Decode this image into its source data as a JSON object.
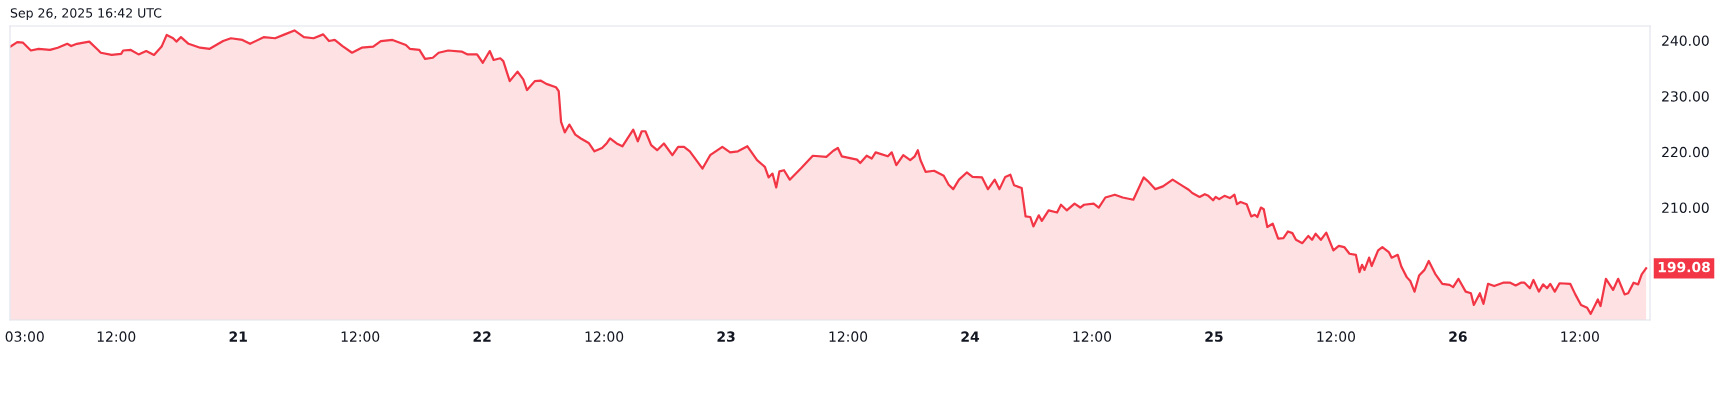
{
  "chart_data": {
    "type": "area",
    "subtitle": "Sep 26, 2025 16:42 UTC",
    "x": [
      "2025-09-20T01:35",
      "2025-09-20T02:16",
      "2025-09-20T02:50",
      "2025-09-20T03:36",
      "2025-09-20T04:22",
      "2025-09-20T05:29",
      "2025-09-20T06:15",
      "2025-09-20T07:11",
      "2025-09-20T07:34",
      "2025-09-20T08:08",
      "2025-09-20T09:21",
      "2025-09-20T10:13",
      "2025-09-20T10:29",
      "2025-09-20T11:33",
      "2025-09-20T12:29",
      "2025-09-20T12:41",
      "2025-09-20T13:26",
      "2025-09-20T14:12",
      "2025-09-20T14:57",
      "2025-09-20T15:43",
      "2025-09-20T16:28",
      "2025-09-20T16:58",
      "2025-09-20T17:36",
      "2025-09-20T17:55",
      "2025-09-20T18:22",
      "2025-09-20T19:07",
      "2025-09-20T20:15",
      "2025-09-20T21:12",
      "2025-09-20T22:31",
      "2025-09-20T23:17",
      "2025-09-21T00:25",
      "2025-09-21T01:10",
      "2025-09-21T02:30",
      "2025-09-21T03:38",
      "2025-09-21T04:35",
      "2025-09-21T05:32",
      "2025-09-21T06:28",
      "2025-09-21T07:25",
      "2025-09-21T08:22",
      "2025-09-21T08:56",
      "2025-09-21T09:30",
      "2025-09-21T10:16",
      "2025-09-21T11:12",
      "2025-09-21T12:09",
      "2025-09-21T13:17",
      "2025-09-21T14:02",
      "2025-09-21T15:11",
      "2025-09-21T16:30",
      "2025-09-21T16:53",
      "2025-09-21T17:50",
      "2025-09-21T18:23",
      "2025-09-21T19:09",
      "2025-09-21T19:43",
      "2025-09-21T20:40",
      "2025-09-21T21:59",
      "2025-09-21T22:34",
      "2025-09-21T23:30",
      "2025-09-22T00:04",
      "2025-09-22T00:45",
      "2025-09-22T01:08",
      "2025-09-22T01:47",
      "2025-09-22T02:05",
      "2025-09-22T02:43",
      "2025-09-22T03:29",
      "2025-09-22T04:03",
      "2025-09-22T04:25",
      "2025-09-22T05:11",
      "2025-09-22T05:45",
      "2025-09-22T06:19",
      "2025-09-22T07:16",
      "2025-09-22T07:32",
      "2025-09-22T07:46",
      "2025-09-22T08:08",
      "2025-09-22T08:35",
      "2025-09-22T09:10",
      "2025-09-22T09:43",
      "2025-09-22T10:29",
      "2025-09-22T11:03",
      "2025-09-22T11:48",
      "2025-09-22T12:17",
      "2025-09-22T12:35",
      "2025-09-22T13:14",
      "2025-09-22T13:48",
      "2025-09-22T14:52",
      "2025-09-22T15:19",
      "2025-09-22T15:42",
      "2025-09-22T16:04",
      "2025-09-22T16:38",
      "2025-09-22T17:13",
      "2025-09-22T17:53",
      "2025-09-22T18:43",
      "2025-09-22T19:17",
      "2025-09-22T19:52",
      "2025-09-22T20:26",
      "2025-09-22T21:41",
      "2025-09-22T22:26",
      "2025-09-22T23:38",
      "2025-09-23T00:24",
      "2025-09-23T01:10",
      "2025-09-23T02:06",
      "2025-09-23T03:03",
      "2025-09-23T03:49",
      "2025-09-23T04:11",
      "2025-09-23T04:34",
      "2025-09-23T04:56",
      "2025-09-23T05:15",
      "2025-09-23T05:42",
      "2025-09-23T06:16",
      "2025-09-23T07:24",
      "2025-09-23T08:32",
      "2025-09-23T09:52",
      "2025-09-23T10:33",
      "2025-09-23T11:00",
      "2025-09-23T11:23",
      "2025-09-23T12:53",
      "2025-09-23T13:12",
      "2025-09-23T13:50",
      "2025-09-23T14:20",
      "2025-09-23T14:43",
      "2025-09-23T15:55",
      "2025-09-23T16:18",
      "2025-09-23T16:45",
      "2025-09-23T17:26",
      "2025-09-23T18:07",
      "2025-09-23T18:34",
      "2025-09-23T18:52",
      "2025-09-23T19:08",
      "2025-09-23T19:38",
      "2025-09-23T20:28",
      "2025-09-23T21:25",
      "2025-09-23T21:54",
      "2025-09-23T22:21",
      "2025-09-23T22:55",
      "2025-09-23T23:41",
      "2025-09-24T00:15",
      "2025-09-24T01:11",
      "2025-09-24T01:46",
      "2025-09-24T02:26",
      "2025-09-24T02:54",
      "2025-09-24T03:28",
      "2025-09-24T03:58",
      "2025-09-24T04:20",
      "2025-09-24T05:05",
      "2025-09-24T05:28",
      "2025-09-24T05:56",
      "2025-09-24T06:14",
      "2025-09-24T06:46",
      "2025-09-24T07:04",
      "2025-09-24T07:44",
      "2025-09-24T08:34",
      "2025-09-24T08:57",
      "2025-09-24T09:31",
      "2025-09-24T10:17",
      "2025-09-24T10:51",
      "2025-09-24T11:13",
      "2025-09-24T12:10",
      "2025-09-24T12:40",
      "2025-09-24T13:19",
      "2025-09-24T14:15",
      "2025-09-24T15:01",
      "2025-09-24T16:04",
      "2025-09-24T17:05",
      "2025-09-24T17:28",
      "2025-09-24T18:14",
      "2025-09-24T18:59",
      "2025-09-24T19:56",
      "2025-09-24T20:59",
      "2025-09-24T21:31",
      "2025-09-24T21:52",
      "2025-09-24T22:35",
      "2025-09-24T23:06",
      "2025-09-24T23:27",
      "2025-09-24T23:55",
      "2025-09-25T00:10",
      "2025-09-25T00:31",
      "2025-09-25T01:02",
      "2025-09-25T01:34",
      "2025-09-25T02:01",
      "2025-09-25T02:16",
      "2025-09-25T02:37",
      "2025-09-25T03:13",
      "2025-09-25T03:40",
      "2025-09-25T04:01",
      "2025-09-25T04:16",
      "2025-09-25T04:37",
      "2025-09-25T04:54",
      "2025-09-25T05:15",
      "2025-09-25T05:47",
      "2025-09-25T06:19",
      "2025-09-25T06:50",
      "2025-09-25T07:17",
      "2025-09-25T07:43",
      "2025-09-25T08:04",
      "2025-09-25T08:42",
      "2025-09-25T09:17",
      "2025-09-25T09:39",
      "2025-09-25T10:00",
      "2025-09-25T10:31",
      "2025-09-25T11:03",
      "2025-09-25T11:45",
      "2025-09-25T12:17",
      "2025-09-25T12:49",
      "2025-09-25T13:20",
      "2025-09-25T13:58",
      "2025-09-25T14:19",
      "2025-09-25T14:34",
      "2025-09-25T14:49",
      "2025-09-25T15:16",
      "2025-09-25T15:31",
      "2025-09-25T16:09",
      "2025-09-25T16:34",
      "2025-09-25T17:12",
      "2025-09-25T17:29",
      "2025-09-25T18:05",
      "2025-09-25T18:26",
      "2025-09-25T18:58",
      "2025-09-25T19:19",
      "2025-09-25T19:44",
      "2025-09-25T20:11",
      "2025-09-25T20:43",
      "2025-09-25T21:08",
      "2025-09-25T21:46",
      "2025-09-25T22:28",
      "2025-09-25T23:11",
      "2025-09-25T23:32",
      "2025-09-26T00:03",
      "2025-09-26T00:46",
      "2025-09-26T01:17",
      "2025-09-26T01:34",
      "2025-09-26T02:10",
      "2025-09-26T02:31",
      "2025-09-26T02:58",
      "2025-09-26T03:34",
      "2025-09-26T04:27",
      "2025-09-26T05:09",
      "2025-09-26T05:41",
      "2025-09-26T06:12",
      "2025-09-26T06:33",
      "2025-09-26T07:05",
      "2025-09-26T07:26",
      "2025-09-26T07:58",
      "2025-09-26T08:23",
      "2025-09-26T08:46",
      "2025-09-26T09:05",
      "2025-09-26T09:32",
      "2025-09-26T10:00",
      "2025-09-26T11:03",
      "2025-09-26T11:33",
      "2025-09-26T12:07",
      "2025-09-26T12:43",
      "2025-09-26T13:04",
      "2025-09-26T13:46",
      "2025-09-26T14:02",
      "2025-09-26T14:34",
      "2025-09-26T15:16",
      "2025-09-26T15:46",
      "2025-09-26T16:24",
      "2025-09-26T16:45",
      "2025-09-26T17:17",
      "2025-09-26T17:44",
      "2025-09-26T18:05",
      "2025-09-26T18:31"
    ],
    "series": [
      {
        "color": "#f23645",
        "values": [
          238.9,
          239.7,
          239.6,
          238.2,
          238.5,
          238.3,
          238.7,
          239.4,
          239.0,
          239.4,
          239.8,
          238.3,
          237.8,
          237.4,
          237.6,
          238.2,
          238.3,
          237.5,
          238.1,
          237.4,
          238.9,
          241.0,
          240.4,
          239.8,
          240.6,
          239.4,
          238.7,
          238.5,
          239.9,
          240.4,
          240.1,
          239.4,
          240.6,
          240.4,
          241.1,
          241.8,
          240.6,
          240.4,
          241.1,
          239.9,
          240.1,
          239.0,
          237.8,
          238.7,
          238.9,
          239.9,
          240.1,
          239.2,
          238.5,
          238.3,
          236.7,
          236.9,
          237.8,
          238.2,
          238.0,
          237.5,
          237.5,
          236.0,
          238.1,
          236.5,
          236.8,
          236.3,
          232.7,
          234.4,
          233.0,
          231.1,
          232.7,
          232.8,
          232.2,
          231.6,
          230.9,
          225.4,
          223.5,
          224.9,
          223.1,
          222.4,
          221.6,
          220.1,
          220.7,
          221.6,
          222.4,
          221.5,
          221.0,
          224.0,
          221.9,
          223.7,
          223.7,
          221.2,
          220.3,
          221.5,
          219.4,
          220.9,
          220.9,
          220.1,
          217.0,
          219.4,
          220.9,
          219.9,
          220.1,
          221.0,
          218.5,
          217.3,
          215.4,
          216.1,
          213.6,
          216.5,
          216.7,
          215.0,
          217.1,
          219.3,
          219.1,
          220.2,
          220.7,
          219.2,
          218.6,
          218.0,
          219.3,
          218.8,
          219.9,
          219.2,
          219.9,
          217.6,
          219.4,
          218.5,
          219.2,
          220.3,
          218.5,
          216.4,
          216.6,
          215.7,
          214.1,
          213.3,
          215.0,
          216.3,
          215.5,
          215.4,
          213.3,
          215.0,
          213.3,
          215.5,
          215.9,
          214.0,
          213.5,
          208.4,
          208.3,
          206.6,
          208.6,
          207.6,
          209.5,
          209.1,
          210.5,
          209.5,
          210.7,
          210.0,
          210.5,
          210.7,
          210.0,
          211.8,
          212.3,
          211.8,
          211.4,
          215.4,
          214.8,
          213.3,
          213.8,
          215.0,
          213.8,
          213.2,
          212.6,
          211.9,
          212.4,
          212.1,
          211.3,
          211.9,
          211.5,
          212.1,
          211.7,
          212.3,
          210.6,
          211.0,
          210.6,
          208.4,
          208.7,
          208.3,
          210.0,
          209.7,
          206.5,
          207.1,
          204.4,
          204.5,
          205.7,
          205.4,
          204.2,
          203.6,
          204.9,
          204.2,
          205.3,
          204.2,
          205.5,
          202.3,
          203.1,
          202.9,
          201.7,
          201.5,
          198.4,
          199.7,
          198.8,
          201.0,
          199.5,
          202.3,
          202.9,
          202.0,
          201.0,
          201.5,
          199.4,
          197.5,
          196.8,
          194.9,
          197.8,
          198.8,
          200.4,
          198.1,
          196.3,
          196.1,
          195.7,
          197.2,
          194.9,
          194.6,
          192.5,
          194.6,
          192.7,
          196.3,
          195.9,
          196.5,
          196.5,
          196.0,
          196.5,
          196.5,
          195.5,
          197.0,
          194.9,
          196.2,
          195.5,
          196.3,
          194.9,
          196.4,
          196.3,
          194.4,
          192.5,
          192.0,
          190.9,
          193.5,
          192.3,
          197.2,
          195.2,
          197.2,
          194.4,
          194.6,
          196.5,
          196.2,
          198.0,
          199.08
        ]
      }
    ],
    "annotations": [
      {
        "text": "199.08",
        "x": "2025-09-26T18:31",
        "y": 199.08
      }
    ],
    "xlim": [
      "2025-09-20T01:33",
      "2025-09-26T18:54"
    ],
    "ylim": [
      189.8,
      242.6
    ],
    "xticks": [
      {
        "value": "2025-09-20T03:00",
        "label": "03:00"
      },
      {
        "value": "2025-09-20T12:00",
        "label": "12:00"
      },
      {
        "value": "2025-09-21T00:00",
        "label": "21"
      },
      {
        "value": "2025-09-21T12:00",
        "label": "12:00"
      },
      {
        "value": "2025-09-22T00:00",
        "label": "22"
      },
      {
        "value": "2025-09-22T12:00",
        "label": "12:00"
      },
      {
        "value": "2025-09-23T00:00",
        "label": "23"
      },
      {
        "value": "2025-09-23T12:00",
        "label": "12:00"
      },
      {
        "value": "2025-09-24T00:00",
        "label": "24"
      },
      {
        "value": "2025-09-24T12:00",
        "label": "12:00"
      },
      {
        "value": "2025-09-25T00:00",
        "label": "25"
      },
      {
        "value": "2025-09-25T12:00",
        "label": "12:00"
      },
      {
        "value": "2025-09-26T00:00",
        "label": "26"
      },
      {
        "value": "2025-09-26T12:00",
        "label": "12:00"
      }
    ],
    "yticks": [
      {
        "value": 210,
        "label": "210.00"
      },
      {
        "value": 220,
        "label": "220.00"
      },
      {
        "value": 230,
        "label": "230.00"
      },
      {
        "value": 240,
        "label": "240.00"
      }
    ],
    "grid": false,
    "legend": false
  }
}
